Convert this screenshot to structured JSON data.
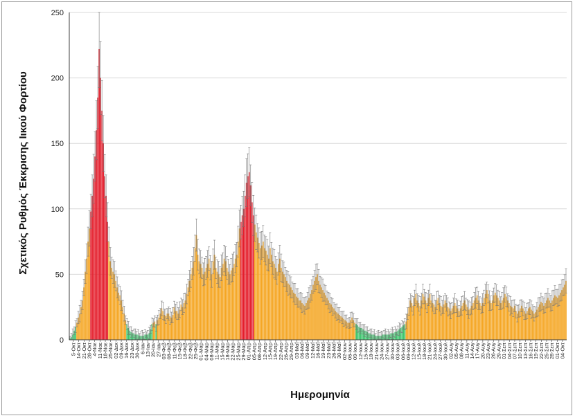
{
  "chart_data": {
    "type": "bar",
    "title": "",
    "xlabel": "Ημερομηνία",
    "ylabel": "Σχετικός Ρυθμός Έκκρισης Ιικού Φορτίου",
    "ylim": [
      0,
      250
    ],
    "yticks": [
      "0",
      "50",
      "100",
      "150",
      "200",
      "250"
    ],
    "grid": true,
    "legend": "none",
    "error_bars": true,
    "colors": {
      "low": "#3cc46c",
      "medium": "#f5a623",
      "high": "#e41d2b",
      "error": "#777777",
      "grid": "#d9d9d9",
      "axis": "#404040"
    },
    "x_tick_labels": [
      "5-Οκτ",
      "14-Οκτ",
      "21-Οκτ",
      "28-Οκτ",
      "4-Νοε",
      "11-Νοε",
      "18-Νοε",
      "25-Νοε",
      "02-Δεκ",
      "09-Δεκ",
      "16-Δεκ",
      "23-Δεκ",
      "30-Δεκ",
      "6-Ιαν",
      "13-Ιαν",
      "20-Ιαν",
      "27-Ιαν",
      "03-Φεβ",
      "08-Φεβ",
      "11-Φεβ",
      "15-Φεβ",
      "18-Φεβ",
      "22-Φεβ",
      "25-Φεβ",
      "01-Μαρ",
      "04-Μαρ",
      "08-Μαρ",
      "11-Μαρ",
      "15-Μαρ",
      "18-Μαρ",
      "22-Μαρ",
      "25-Μαρ",
      "29-Μαρ",
      "01-Απρ",
      "05-Απρ",
      "08-Απρ",
      "12-Απρ",
      "15-Απρ",
      "19-Απρ",
      "22-Απρ",
      "26-Απρ",
      "29-Απρ",
      "03-Μαΐ",
      "06-Μαΐ",
      "09-Μαΐ",
      "12-Μαΐ",
      "16-Μαΐ",
      "19-Μαΐ",
      "23-Μαΐ",
      "26-Μαΐ",
      "30-Μαΐ",
      "02-Ιουν",
      "06-Ιουν",
      "09-Ιουν",
      "12-Ιουν",
      "15-Ιουν",
      "18-Ιουν",
      "21-Ιουν",
      "24-Ιουν",
      "27-Ιουν",
      "30-Ιουν",
      "03-Ιουλ",
      "06-Ιουλ",
      "09-Ιουλ",
      "12-Ιουλ",
      "15-Ιουλ",
      "18-Ιουλ",
      "21-Ιουλ",
      "24-Ιουλ",
      "27-Ιουλ",
      "30-Ιουλ",
      "02-Αυγ",
      "05-Αυγ",
      "08-Αυγ",
      "11-Αυγ",
      "14-Αυγ",
      "17-Αυγ",
      "20-Αυγ",
      "23-Αυγ",
      "26-Αυγ",
      "29-Αυγ",
      "01-Σεπ",
      "04-Σεπ",
      "07-Σεπ",
      "10-Σεπ",
      "13-Σεπ",
      "16-Σεπ",
      "19-Σεπ",
      "22-Σεπ",
      "25-Σεπ",
      "28-Σεπ",
      "01-Οκτ",
      "04-Οκτ"
    ],
    "series": [
      {
        "values": [
          1,
          2,
          4,
          7,
          10,
          13,
          17,
          20,
          25,
          30,
          40,
          52,
          62,
          75,
          85,
          98,
          110,
          123,
          140,
          160,
          185,
          222,
          200,
          175,
          150,
          125,
          110,
          90,
          75,
          60,
          55,
          52,
          50,
          45,
          40,
          36,
          34,
          30,
          25,
          20,
          15,
          12,
          9,
          7,
          6,
          5,
          5,
          4,
          4,
          4,
          3,
          3,
          3,
          3,
          4,
          4,
          4,
          5,
          8,
          12,
          13,
          14,
          12,
          15,
          17,
          20,
          24,
          22,
          19,
          18,
          20,
          20,
          18,
          17,
          19,
          25,
          22,
          22,
          20,
          23,
          27,
          25,
          28,
          30,
          35,
          40,
          45,
          50,
          55,
          60,
          70,
          80,
          65,
          60,
          58,
          55,
          50,
          52,
          55,
          58,
          62,
          55,
          50,
          60,
          65,
          55,
          52,
          50,
          48,
          55,
          58,
          62,
          60,
          55,
          52,
          50,
          53,
          55,
          58,
          62,
          65,
          75,
          85,
          90,
          95,
          100,
          110,
          120,
          125,
          128,
          118,
          105,
          95,
          88,
          82,
          78,
          74,
          70,
          72,
          75,
          70,
          68,
          65,
          62,
          70,
          65,
          60,
          58,
          55,
          52,
          58,
          62,
          55,
          52,
          50,
          48,
          45,
          43,
          42,
          40,
          38,
          36,
          35,
          33,
          32,
          30,
          30,
          28,
          27,
          26,
          28,
          30,
          32,
          35,
          38,
          42,
          45,
          48,
          50,
          45,
          42,
          40,
          38,
          36,
          34,
          32,
          30,
          28,
          27,
          25,
          24,
          22,
          21,
          20,
          19,
          18,
          17,
          16,
          15,
          14,
          13,
          13,
          15,
          17,
          15,
          13,
          12,
          11,
          10,
          9,
          9,
          8,
          7,
          7,
          6,
          5,
          5,
          4,
          4,
          4,
          3,
          3,
          3,
          3,
          3,
          4,
          4,
          4,
          4,
          4,
          4,
          5,
          5,
          5,
          6,
          6,
          7,
          8,
          9,
          10,
          11,
          12,
          14,
          20,
          25,
          30,
          28,
          26,
          32,
          35,
          30,
          28,
          26,
          30,
          35,
          33,
          30,
          28,
          32,
          35,
          30,
          28,
          27,
          25,
          30,
          32,
          28,
          26,
          25,
          27,
          30,
          28,
          25,
          24,
          22,
          24,
          26,
          28,
          26,
          24,
          22,
          24,
          26,
          28,
          30,
          27,
          25,
          23,
          24,
          26,
          28,
          30,
          32,
          34,
          30,
          28,
          26,
          28,
          32,
          35,
          38,
          35,
          30,
          28,
          30,
          34,
          36,
          34,
          32,
          30,
          28,
          30,
          32,
          35,
          33,
          30,
          28,
          26,
          25,
          24,
          26,
          22,
          20,
          22,
          24,
          26,
          24,
          22,
          20,
          22,
          24,
          25,
          23,
          22,
          20,
          21,
          23,
          25,
          27,
          29,
          28,
          26,
          28,
          30,
          32,
          30,
          28,
          30,
          32,
          34,
          33,
          32,
          34,
          36,
          38,
          40,
          42,
          45
        ]
      }
    ]
  }
}
